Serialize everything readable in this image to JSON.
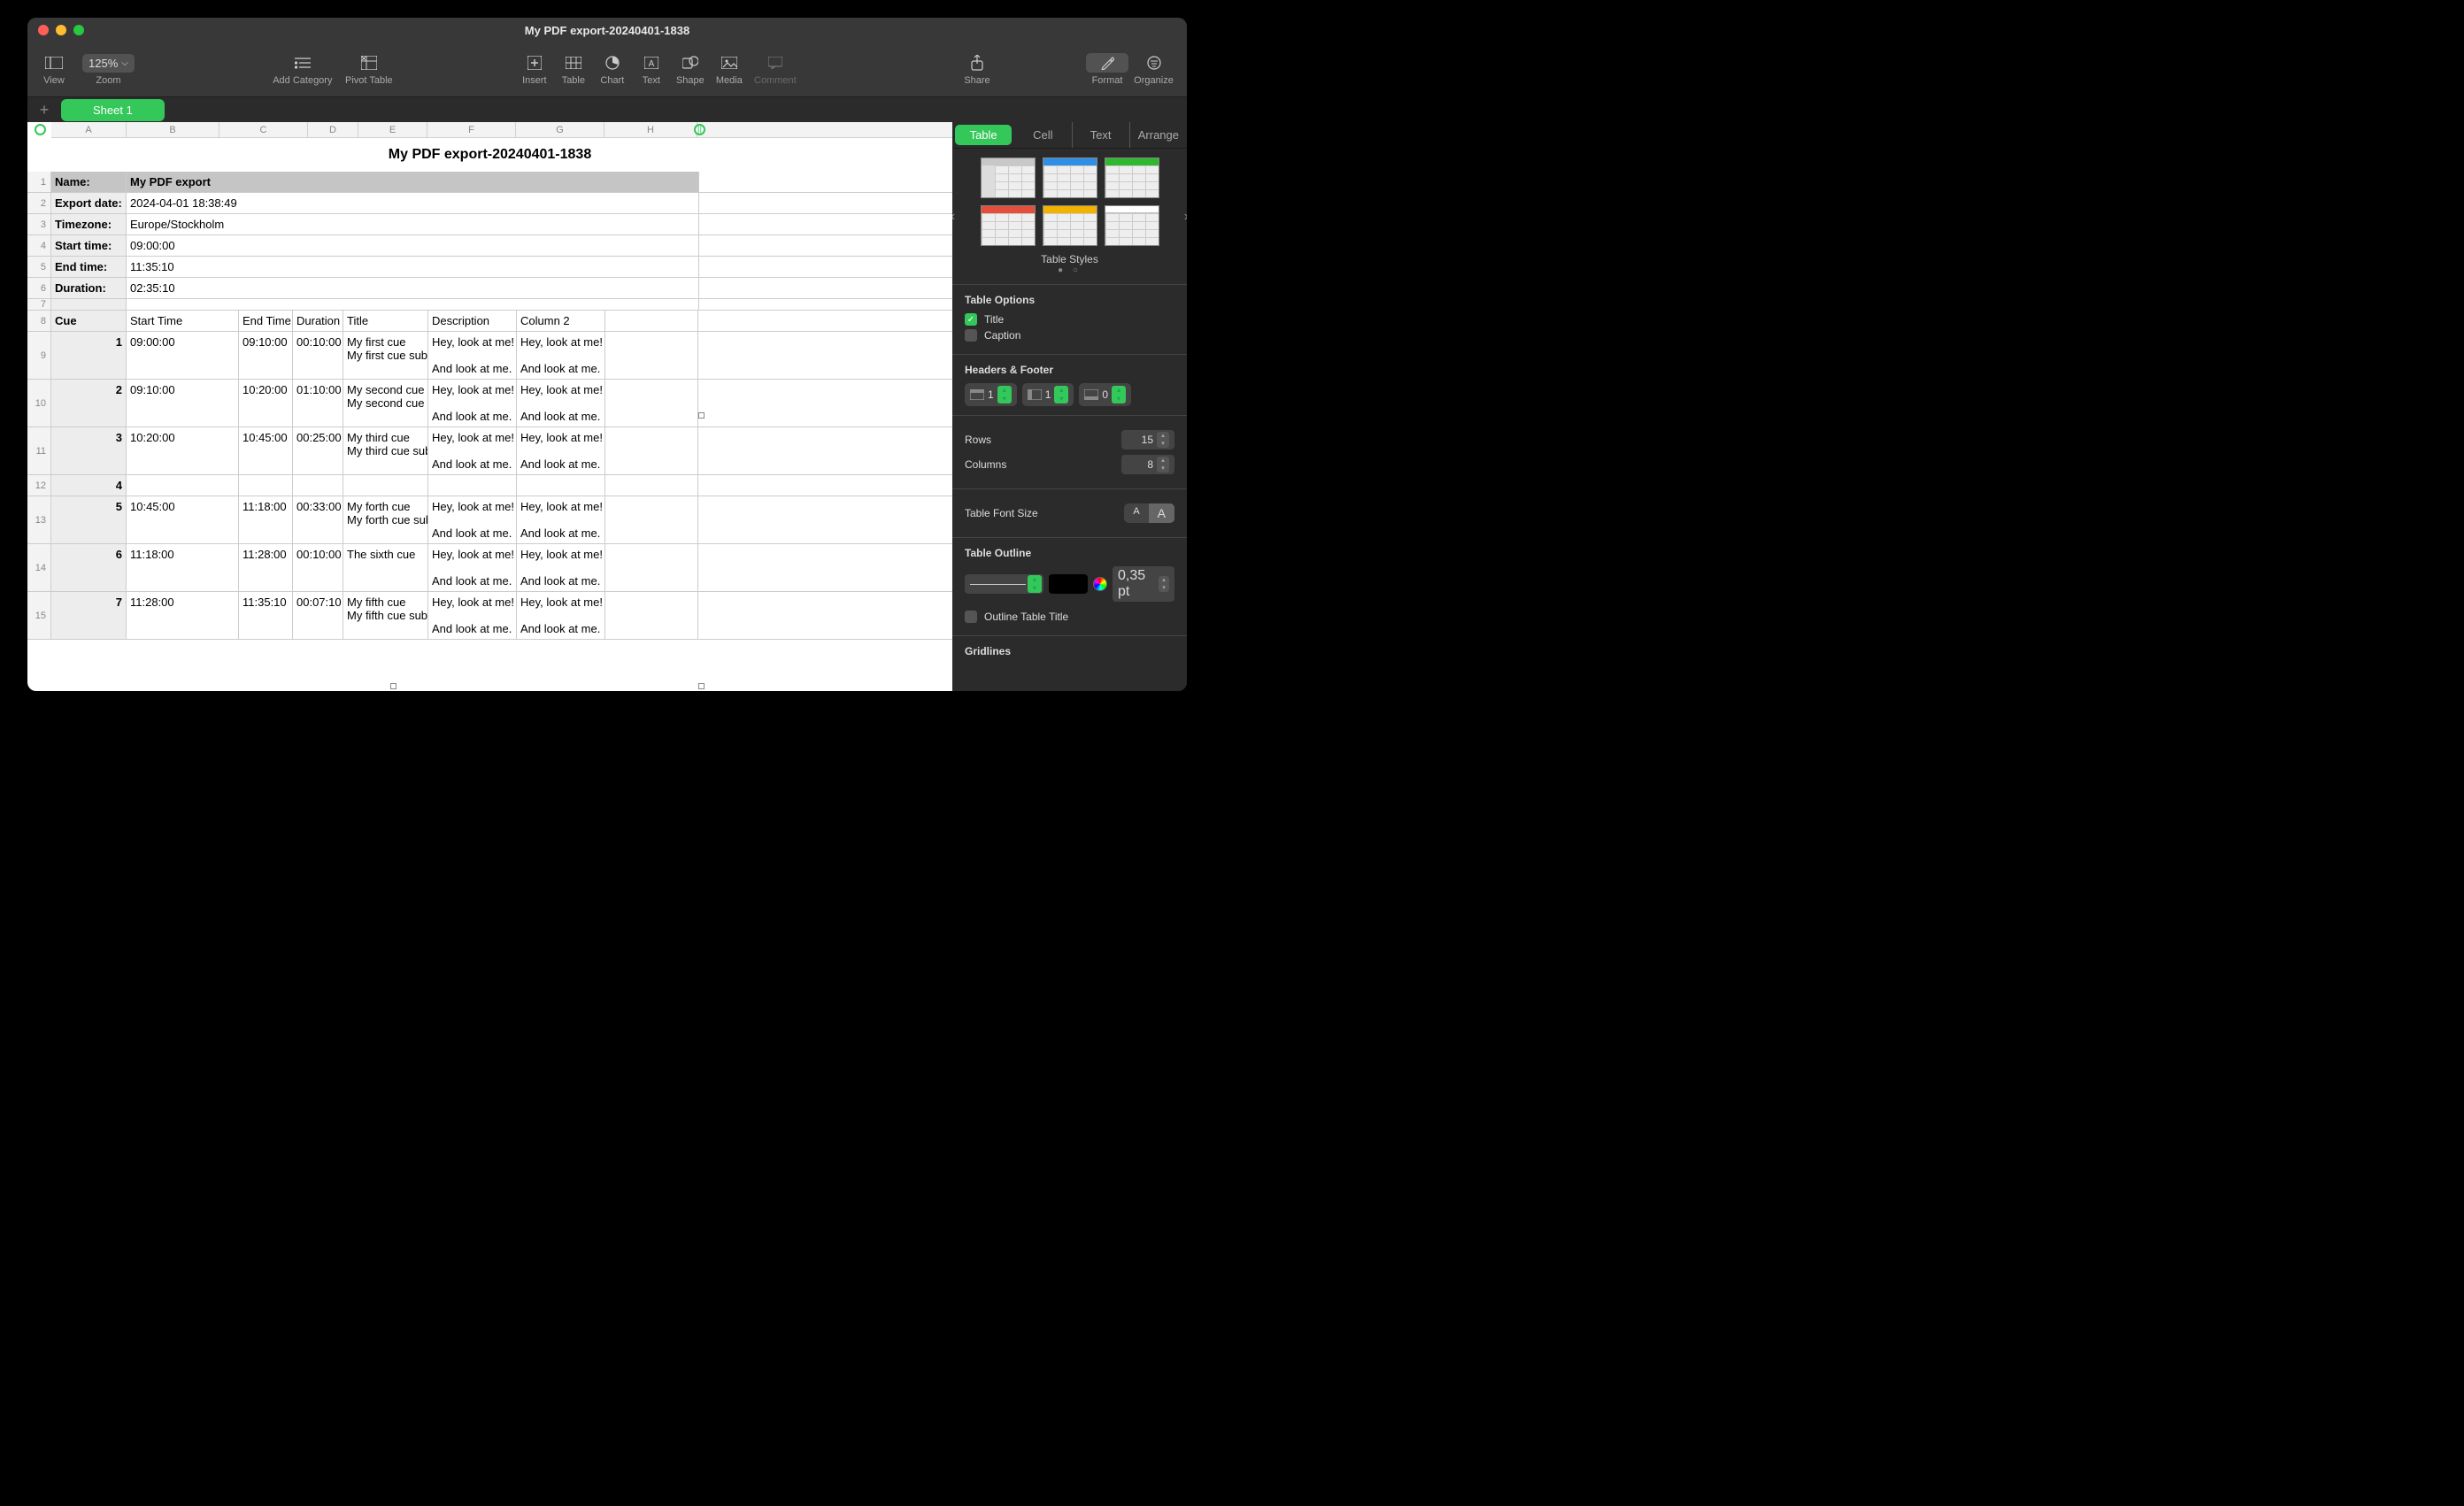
{
  "window": {
    "title": "My PDF export-20240401-1838"
  },
  "toolbar": {
    "view": "View",
    "zoom_value": "125%",
    "zoom_label": "Zoom",
    "add_category": "Add Category",
    "pivot_table": "Pivot Table",
    "insert": "Insert",
    "table": "Table",
    "chart": "Chart",
    "text": "Text",
    "shape": "Shape",
    "media": "Media",
    "comment": "Comment",
    "share": "Share",
    "format": "Format",
    "organize": "Organize"
  },
  "sheet": {
    "add": "+",
    "tab": "Sheet 1"
  },
  "columns": [
    "A",
    "B",
    "C",
    "D",
    "E",
    "F",
    "G",
    "H"
  ],
  "table_title": "My PDF export-20240401-1838",
  "meta": {
    "name_k": "Name:",
    "name_v": "My PDF export",
    "export_k": "Export date:",
    "export_v": "2024-04-01 18:38:49",
    "tz_k": "Timezone:",
    "tz_v": "Europe/Stockholm",
    "start_k": "Start time:",
    "start_v": "09:00:00",
    "end_k": "End time:",
    "end_v": "11:35:10",
    "dur_k": "Duration:",
    "dur_v": "02:35:10"
  },
  "headers": {
    "cue": "Cue",
    "start": "Start Time",
    "end": "End Time",
    "dur": "Duration",
    "title": "Title",
    "desc": "Description",
    "col2": "Column 2"
  },
  "rows": [
    {
      "n": "1",
      "st": "09:00:00",
      "et": "09:10:00",
      "du": "00:10:00",
      "ti": "My first cue\nMy first cue subtitle",
      "d1": "Hey, look at me!",
      "d2": "And look at me.",
      "c1": "Hey, look at me!",
      "c2": "And look at me."
    },
    {
      "n": "2",
      "st": "09:10:00",
      "et": "10:20:00",
      "du": "01:10:00",
      "ti": "My second cue\nMy second cue subtitle",
      "d1": "Hey, look at me!",
      "d2": "And look at me.",
      "c1": "Hey, look at me!",
      "c2": "And look at me."
    },
    {
      "n": "3",
      "st": "10:20:00",
      "et": "10:45:00",
      "du": "00:25:00",
      "ti": "My third cue\nMy third cue subtitle",
      "d1": "Hey, look at me!",
      "d2": "And look at me.",
      "c1": "Hey, look at me!",
      "c2": "And look at me."
    },
    {
      "n": "4",
      "st": "",
      "et": "",
      "du": "",
      "ti": "",
      "d1": "",
      "d2": "",
      "c1": "",
      "c2": ""
    },
    {
      "n": "5",
      "st": "10:45:00",
      "et": "11:18:00",
      "du": "00:33:00",
      "ti": "My forth cue\nMy forth cue subtitle",
      "d1": "Hey, look at me!",
      "d2": "And look at me.",
      "c1": "Hey, look at me!",
      "c2": "And look at me."
    },
    {
      "n": "6",
      "st": "11:18:00",
      "et": "11:28:00",
      "du": "00:10:00",
      "ti": "The sixth cue",
      "d1": "Hey, look at me!",
      "d2": "And look at me.",
      "c1": "Hey, look at me!",
      "c2": "And look at me."
    },
    {
      "n": "7",
      "st": "11:28:00",
      "et": "11:35:10",
      "du": "00:07:10",
      "ti": "My fifth cue\nMy fifth cue subtitle",
      "d1": "Hey, look at me!",
      "d2": "And look at me.",
      "c1": "Hey, look at me!",
      "c2": "And look at me."
    }
  ],
  "inspector": {
    "tabs": {
      "table": "Table",
      "cell": "Cell",
      "text": "Text",
      "arrange": "Arrange"
    },
    "styles_label": "Table Styles",
    "style_colors": [
      "#c8c8c8",
      "#2f8fe6",
      "#2fb82f",
      "#e64e3c",
      "#f2b200",
      "#ffffff"
    ],
    "options_title": "Table Options",
    "title_chk": "Title",
    "caption_chk": "Caption",
    "hf_title": "Headers & Footer",
    "hf_rows": "1",
    "hf_cols": "1",
    "hf_foot": "0",
    "rows_label": "Rows",
    "rows_val": "15",
    "cols_label": "Columns",
    "cols_val": "8",
    "font_title": "Table Font Size",
    "font_small": "A",
    "font_big": "A",
    "outline_title": "Table Outline",
    "outline_val": "0,35 pt",
    "outline_chk": "Outline Table Title",
    "gridlines": "Gridlines"
  }
}
